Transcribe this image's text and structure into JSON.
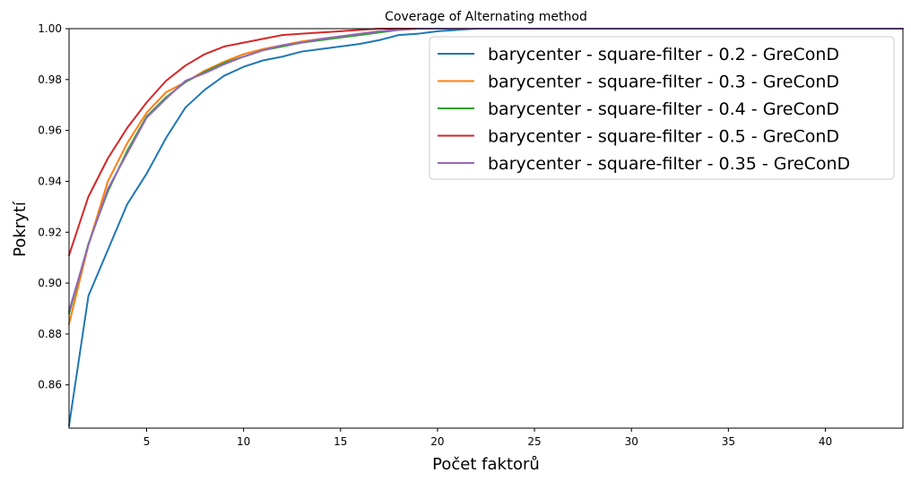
{
  "chart_data": {
    "type": "line",
    "title": "Coverage of Alternating method",
    "xlabel": "Počet faktorů",
    "ylabel": "Pokrytí",
    "xlim": [
      1,
      44
    ],
    "ylim": [
      0.843,
      1.0
    ],
    "xticks": [
      5,
      10,
      15,
      20,
      25,
      30,
      35,
      40
    ],
    "yticks": [
      0.86,
      0.88,
      0.9,
      0.92,
      0.94,
      0.96,
      0.98,
      1.0
    ],
    "ytick_labels": [
      "0.86",
      "0.88",
      "0.90",
      "0.92",
      "0.94",
      "0.96",
      "0.98",
      "1.00"
    ],
    "legend_position": "top-right",
    "grid": false,
    "x": [
      1,
      2,
      3,
      4,
      5,
      6,
      7,
      8,
      9,
      10,
      11,
      12,
      13,
      14,
      15,
      16,
      17,
      18,
      19,
      20,
      21,
      22,
      23,
      24,
      25,
      26,
      27,
      28,
      29,
      30,
      31,
      32,
      33,
      34,
      35,
      36,
      37,
      38,
      39,
      40,
      41,
      42,
      43,
      44
    ],
    "series": [
      {
        "name": "barycenter - square-filter - 0.2 - GreConD",
        "color": "#1f77b4",
        "values": [
          0.844,
          0.895,
          0.913,
          0.931,
          0.943,
          0.957,
          0.969,
          0.976,
          0.9815,
          0.985,
          0.9875,
          0.989,
          0.991,
          0.992,
          0.993,
          0.994,
          0.9955,
          0.9975,
          0.998,
          0.999,
          0.9995,
          1.0,
          1.0,
          1.0,
          1.0,
          1.0,
          1.0,
          1.0,
          1.0,
          1.0,
          1.0,
          1.0,
          1.0,
          1.0,
          1.0,
          1.0,
          1.0,
          1.0,
          1.0,
          1.0,
          1.0,
          1.0,
          1.0,
          1.0
        ]
      },
      {
        "name": "barycenter - square-filter - 0.3 - GreConD",
        "color": "#ff7f0e",
        "values": [
          0.884,
          0.915,
          0.94,
          0.955,
          0.967,
          0.975,
          0.979,
          0.9835,
          0.987,
          0.99,
          0.992,
          0.9935,
          0.995,
          0.996,
          0.997,
          0.998,
          0.999,
          0.9995,
          1.0,
          1.0,
          1.0,
          1.0,
          1.0,
          1.0,
          1.0,
          1.0,
          1.0,
          1.0,
          1.0,
          1.0,
          1.0,
          1.0,
          1.0,
          1.0,
          1.0,
          1.0,
          1.0,
          1.0,
          1.0,
          1.0,
          1.0,
          1.0,
          1.0,
          1.0
        ]
      },
      {
        "name": "barycenter - square-filter - 0.4 - GreConD",
        "color": "#2ca02c",
        "values": [
          0.888,
          0.9155,
          0.936,
          0.952,
          0.9655,
          0.973,
          0.979,
          0.983,
          0.9865,
          0.989,
          0.9915,
          0.993,
          0.9945,
          0.9955,
          0.9965,
          0.9975,
          0.9985,
          0.9995,
          1.0,
          1.0,
          1.0,
          1.0,
          1.0,
          1.0,
          1.0,
          1.0,
          1.0,
          1.0,
          1.0,
          1.0,
          1.0,
          1.0,
          1.0,
          1.0,
          1.0,
          1.0,
          1.0,
          1.0,
          1.0,
          1.0,
          1.0,
          1.0,
          1.0,
          1.0
        ]
      },
      {
        "name": "barycenter - square-filter - 0.5 - GreConD",
        "color": "#d62728",
        "values": [
          0.911,
          0.934,
          0.949,
          0.961,
          0.971,
          0.9795,
          0.9855,
          0.99,
          0.993,
          0.9945,
          0.996,
          0.9975,
          0.998,
          0.9985,
          0.999,
          0.9995,
          1.0,
          1.0,
          1.0,
          1.0,
          1.0,
          1.0,
          1.0,
          1.0,
          1.0,
          1.0,
          1.0,
          1.0,
          1.0,
          1.0,
          1.0,
          1.0,
          1.0,
          1.0,
          1.0,
          1.0,
          1.0,
          1.0,
          1.0,
          1.0,
          1.0,
          1.0,
          1.0,
          1.0
        ]
      },
      {
        "name": "barycenter - square-filter - 0.35 - GreConD",
        "color": "#9467bd",
        "values": [
          0.889,
          0.915,
          0.937,
          0.951,
          0.965,
          0.9725,
          0.9795,
          0.9825,
          0.986,
          0.989,
          0.9915,
          0.9935,
          0.9945,
          0.996,
          0.997,
          0.998,
          0.999,
          0.9995,
          1.0,
          1.0,
          1.0,
          1.0,
          1.0,
          1.0,
          1.0,
          1.0,
          1.0,
          1.0,
          1.0,
          1.0,
          1.0,
          1.0,
          1.0,
          1.0,
          1.0,
          1.0,
          1.0,
          1.0,
          1.0,
          1.0,
          1.0,
          1.0,
          1.0,
          1.0
        ]
      }
    ]
  }
}
